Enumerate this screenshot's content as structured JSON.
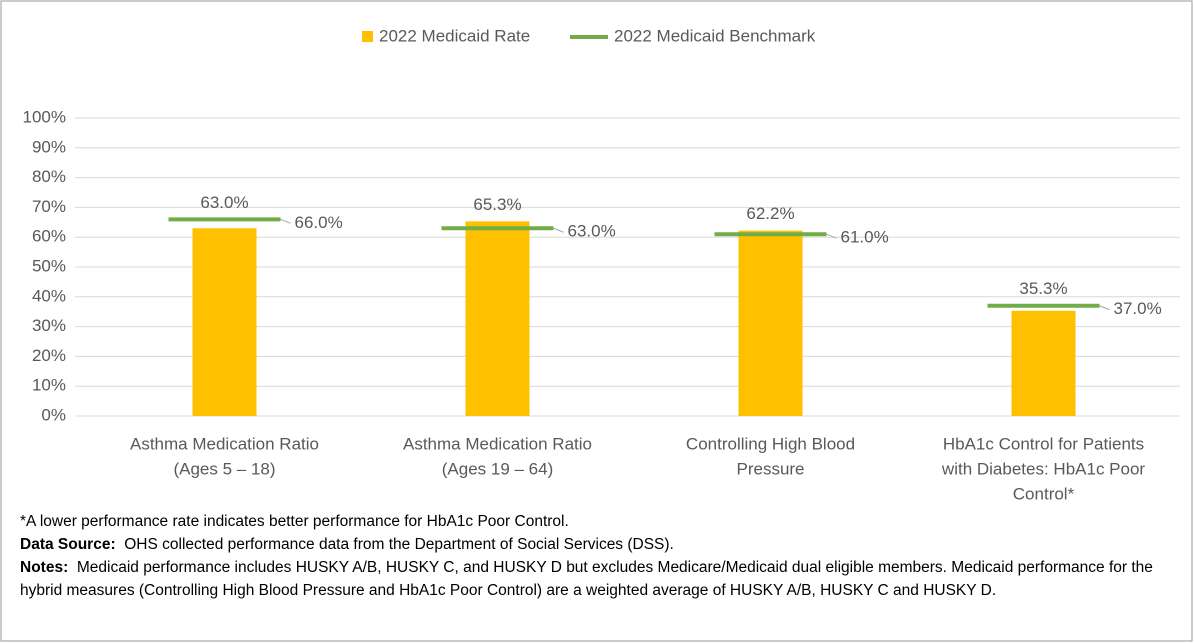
{
  "chart_data": {
    "type": "bar",
    "categories": [
      [
        "Asthma Medication Ratio",
        "(Ages 5 – 18)"
      ],
      [
        "Asthma Medication Ratio",
        "(Ages 19 – 64)"
      ],
      [
        "Controlling High Blood",
        "Pressure"
      ],
      [
        "HbA1c Control for Patients",
        "with Diabetes: HbA1c Poor",
        "Control*"
      ]
    ],
    "series": [
      {
        "name": "2022 Medicaid Rate",
        "color": "#ffc000",
        "values": [
          63.0,
          65.3,
          62.2,
          35.3
        ],
        "value_labels": [
          "63.0%",
          "65.3%",
          "62.2%",
          "35.3%"
        ]
      },
      {
        "name": "2022 Medicaid Benchmark",
        "color": "#70ad47",
        "values": [
          66.0,
          63.0,
          61.0,
          37.0
        ],
        "value_labels": [
          "66.0%",
          "63.0%",
          "61.0%",
          "37.0%"
        ]
      }
    ],
    "ylim": [
      0,
      100
    ],
    "yticks": [
      {
        "value": 0,
        "label": "0%"
      },
      {
        "value": 10,
        "label": "10%"
      },
      {
        "value": 20,
        "label": "20%"
      },
      {
        "value": 30,
        "label": "30%"
      },
      {
        "value": 40,
        "label": "40%"
      },
      {
        "value": 50,
        "label": "50%"
      },
      {
        "value": 60,
        "label": "60%"
      },
      {
        "value": 70,
        "label": "70%"
      },
      {
        "value": 80,
        "label": "80%"
      },
      {
        "value": 90,
        "label": "90%"
      },
      {
        "value": 100,
        "label": "100%"
      }
    ],
    "grid": true,
    "legend": "top"
  },
  "footnote": "*A lower performance rate indicates better performance for HbA1c Poor Control.",
  "data_source": {
    "label": "Data Source:",
    "text": "OHS collected performance data from the Department of Social Services (DSS)."
  },
  "notes": {
    "label": "Notes:",
    "text": "Medicaid performance includes HUSKY A/B, HUSKY C, and HUSKY D but excludes Medicare/Medicaid dual eligible members. Medicaid performance for the hybrid measures (Controlling High Blood Pressure and HbA1c Poor Control) are a weighted average of HUSKY A/B, HUSKY C and HUSKY D."
  }
}
